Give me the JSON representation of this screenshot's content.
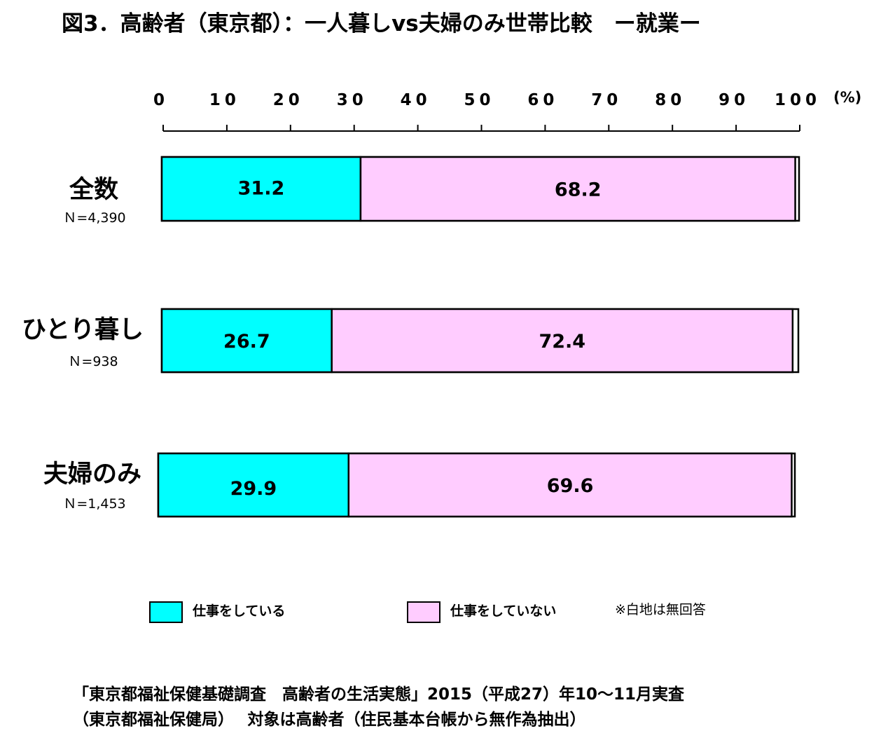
{
  "chart_data": {
    "type": "bar",
    "orientation": "horizontal",
    "stacked": true,
    "title": "図3．高齢者（東京都）：一人暮しvs夫婦のみ世帯比較　ー就業ー",
    "unit": "(%)",
    "xlim": [
      0,
      100
    ],
    "ticks": [
      "0",
      "10",
      "20",
      "30",
      "40",
      "50",
      "60",
      "70",
      "80",
      "90",
      "100"
    ],
    "categories": [
      {
        "label": "全数",
        "n": "Ｎ=4,390"
      },
      {
        "label": "ひとり暮し",
        "n": "Ｎ=938"
      },
      {
        "label": "夫婦のみ",
        "n": "Ｎ=1,453"
      }
    ],
    "series": [
      {
        "name": "仕事をしている",
        "color": "#00ffff",
        "values": [
          31.2,
          26.7,
          29.9
        ],
        "labels": [
          "31.2",
          "26.7",
          "29.9"
        ]
      },
      {
        "name": "仕事をしていない",
        "color": "#ffccff",
        "values": [
          68.2,
          72.4,
          69.6
        ],
        "labels": [
          "68.2",
          "72.4",
          "69.6"
        ]
      }
    ],
    "remainder_color": "#ffffff",
    "legend_position": "bottom",
    "note": "※白地は無回答"
  },
  "source": {
    "line1": "「東京都福祉保健基礎調査　高齢者の生活実態」2015（平成27）年10～11月実査",
    "line2": "（東京都福祉保健局）　 対象は高齢者（住民基本台帳から無作為抽出）"
  }
}
